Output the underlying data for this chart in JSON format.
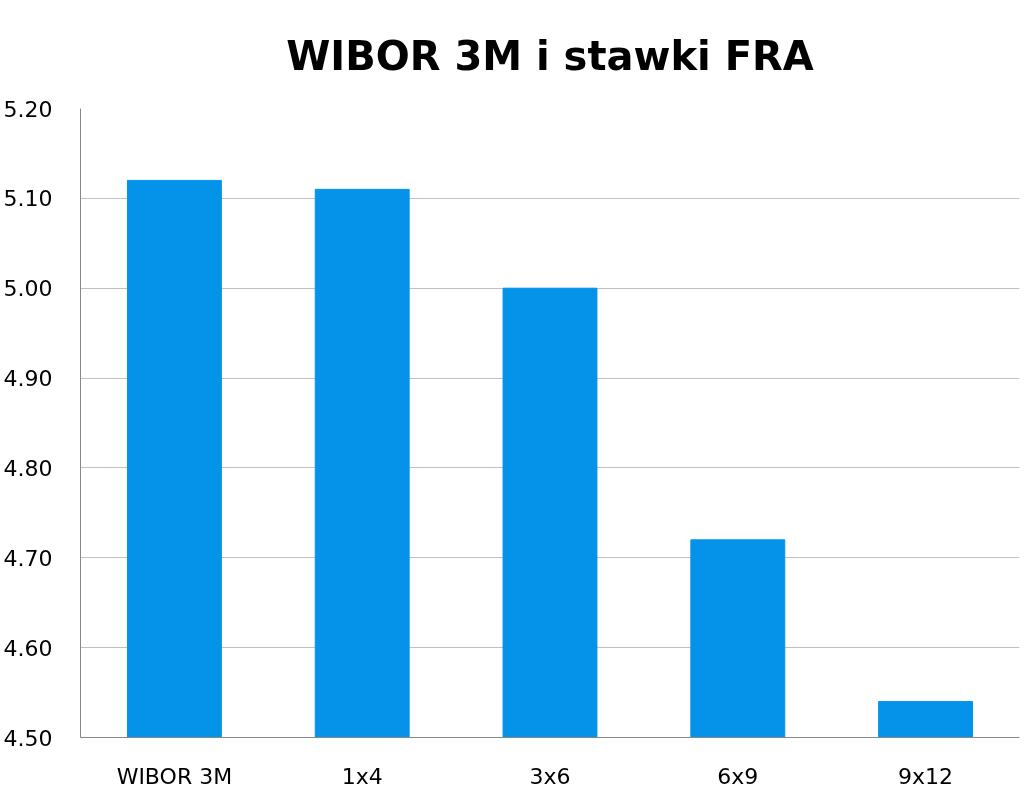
{
  "chart_data": {
    "type": "bar",
    "title": "WIBOR 3M i stawki FRA",
    "categories": [
      "WIBOR 3M",
      "1x4",
      "3x6",
      "6x9",
      "9x12"
    ],
    "values": [
      5.12,
      5.11,
      5.0,
      4.72,
      4.54
    ],
    "color": "#0593ea",
    "ylim": [
      4.5,
      5.2
    ],
    "yticks": [
      {
        "value": 4.5,
        "label": "4.50"
      },
      {
        "value": 4.6,
        "label": "4.60"
      },
      {
        "value": 4.7,
        "label": "4.70"
      },
      {
        "value": 4.8,
        "label": "4.80"
      },
      {
        "value": 4.9,
        "label": "4.90"
      },
      {
        "value": 5.0,
        "label": "5.00"
      },
      {
        "value": 5.1,
        "label": "5.10"
      },
      {
        "value": 5.2,
        "label": "5.20"
      }
    ],
    "grid": "y"
  }
}
